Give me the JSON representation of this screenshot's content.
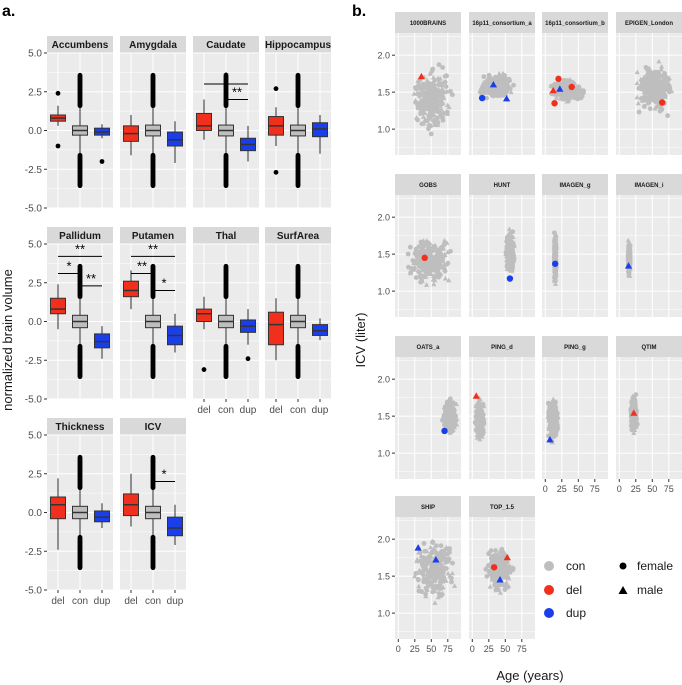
{
  "panel_a_letter": "a.",
  "panel_b_letter": "b.",
  "colors": {
    "del": "#f0301c",
    "con": "#bebebe",
    "dup": "#1a3fe8",
    "panel_bg": "#ebebeb",
    "strip_bg": "#d9d9d9",
    "grid": "#ffffff"
  },
  "chart_data": [
    {
      "type": "box",
      "title": "a.",
      "ylabel": "normalized brain volume",
      "ylim": [
        -5.0,
        5.0
      ],
      "yticks": [
        "5.0",
        "2.5",
        "0.0",
        "-2.5",
        "-5.0"
      ],
      "ytick_values": [
        5.0,
        2.5,
        0.0,
        -2.5,
        -5.0
      ],
      "categories": [
        "del",
        "con",
        "dup"
      ],
      "facets": [
        {
          "name": "Accumbens",
          "boxes": {
            "del": [
              0.3,
              0.6,
              0.8,
              1.0,
              1.6,
              [
                2.4,
                -1.0
              ]
            ],
            "con": [
              -1.5,
              -0.3,
              0.0,
              0.3,
              1.5,
              []
            ],
            "dup": [
              -0.5,
              -0.3,
              -0.1,
              0.15,
              0.4,
              [
                -2.0
              ]
            ]
          },
          "sigs": []
        },
        {
          "name": "Amygdala",
          "boxes": {
            "del": [
              -1.6,
              -0.7,
              -0.2,
              0.3,
              1.0,
              []
            ],
            "con": [
              -1.5,
              -0.35,
              0.0,
              0.35,
              1.5,
              []
            ],
            "dup": [
              -2.1,
              -1.0,
              -0.6,
              -0.1,
              0.6,
              []
            ]
          },
          "sigs": []
        },
        {
          "name": "Caudate",
          "boxes": {
            "del": [
              -0.6,
              0.0,
              0.3,
              1.1,
              2.0,
              []
            ],
            "con": [
              -1.5,
              -0.35,
              0.0,
              0.35,
              1.5,
              []
            ],
            "dup": [
              -2.0,
              -1.3,
              -0.9,
              -0.5,
              0.3,
              []
            ]
          },
          "sigs": [
            {
              "from": "del",
              "to": "dup",
              "level": 3.0,
              "label": "*"
            },
            {
              "from": "con",
              "to": "dup",
              "level": 2.0,
              "label": "**"
            }
          ]
        },
        {
          "name": "Hippocampus",
          "boxes": {
            "del": [
              -1.0,
              -0.3,
              0.3,
              0.9,
              1.5,
              [
                2.7,
                -2.7
              ]
            ],
            "con": [
              -1.5,
              -0.35,
              0.0,
              0.35,
              1.5,
              []
            ],
            "dup": [
              -1.5,
              -0.4,
              0.1,
              0.5,
              1.0,
              []
            ]
          },
          "sigs": []
        },
        {
          "name": "Pallidum",
          "boxes": {
            "del": [
              -0.5,
              0.5,
              0.8,
              1.5,
              2.4,
              []
            ],
            "con": [
              -1.5,
              -0.4,
              0.0,
              0.4,
              1.6,
              []
            ],
            "dup": [
              -2.4,
              -1.7,
              -1.3,
              -0.8,
              -0.3,
              []
            ]
          },
          "sigs": [
            {
              "from": "del",
              "to": "dup",
              "level": 4.2,
              "label": "**"
            },
            {
              "from": "del",
              "to": "con",
              "level": 3.1,
              "label": "*"
            },
            {
              "from": "con",
              "to": "dup",
              "level": 2.3,
              "label": "**"
            }
          ]
        },
        {
          "name": "Putamen",
          "boxes": {
            "del": [
              0.8,
              1.6,
              2.0,
              2.6,
              3.3,
              []
            ],
            "con": [
              -1.5,
              -0.4,
              0.0,
              0.4,
              1.5,
              []
            ],
            "dup": [
              -2.0,
              -1.5,
              -0.9,
              -0.3,
              0.5,
              []
            ]
          },
          "sigs": [
            {
              "from": "del",
              "to": "dup",
              "level": 4.2,
              "label": "**"
            },
            {
              "from": "del",
              "to": "con",
              "level": 3.1,
              "label": "**"
            },
            {
              "from": "con",
              "to": "dup",
              "level": 2.0,
              "label": "*"
            }
          ]
        },
        {
          "name": "Thal",
          "boxes": {
            "del": [
              -0.5,
              0.0,
              0.5,
              0.8,
              1.6,
              [
                -3.1
              ]
            ],
            "con": [
              -1.5,
              -0.4,
              0.0,
              0.4,
              1.5,
              []
            ],
            "dup": [
              -1.5,
              -0.7,
              -0.3,
              0.1,
              0.8,
              [
                -2.4
              ]
            ]
          },
          "sigs": []
        },
        {
          "name": "SurfArea",
          "boxes": {
            "del": [
              -2.5,
              -1.5,
              -0.2,
              0.6,
              1.5,
              []
            ],
            "con": [
              -1.5,
              -0.4,
              0.0,
              0.4,
              1.5,
              []
            ],
            "dup": [
              -1.2,
              -0.9,
              -0.6,
              -0.2,
              0.2,
              []
            ]
          },
          "sigs": []
        },
        {
          "name": "Thickness",
          "boxes": {
            "del": [
              -2.4,
              -0.4,
              0.5,
              1.0,
              2.2,
              []
            ],
            "con": [
              -1.5,
              -0.4,
              0.0,
              0.4,
              1.5,
              []
            ],
            "dup": [
              -1.0,
              -0.6,
              -0.3,
              0.1,
              0.6,
              []
            ]
          },
          "sigs": []
        },
        {
          "name": "ICV",
          "boxes": {
            "del": [
              -0.9,
              -0.2,
              0.5,
              1.2,
              2.5,
              []
            ],
            "con": [
              -1.5,
              -0.4,
              0.0,
              0.4,
              1.5,
              []
            ],
            "dup": [
              -2.1,
              -1.5,
              -1.0,
              -0.3,
              0.5,
              []
            ]
          },
          "sigs": [
            {
              "from": "con",
              "to": "dup",
              "level": 2.0,
              "label": "*"
            }
          ]
        }
      ]
    },
    {
      "type": "scatter",
      "title": "b.",
      "xlabel": "Age (years)",
      "ylabel": "ICV (liter)",
      "xlim": [
        -5,
        95
      ],
      "ylim": [
        0.65,
        2.3
      ],
      "xticks": [
        "0",
        "25",
        "50",
        "75"
      ],
      "xtick_values": [
        0,
        25,
        50,
        75
      ],
      "yticks": [
        "2.0",
        "1.5",
        "1.0"
      ],
      "ytick_values": [
        2.0,
        1.5,
        1.0
      ],
      "legend": {
        "groups": [
          "con",
          "del",
          "dup"
        ],
        "sexes": [
          "female",
          "male"
        ]
      },
      "facets": [
        {
          "name": "1000BRAINS",
          "cloud": {
            "x": [
              18,
              85
            ],
            "y": [
              0.8,
              2.0
            ]
          },
          "points": [
            {
              "group": "del",
              "sex": "male",
              "x": 35,
              "y": 1.71
            }
          ]
        },
        {
          "name": "16p11_consortium_a",
          "cloud": {
            "x": [
              5,
              65
            ],
            "y": [
              1.35,
              1.8
            ]
          },
          "points": [
            {
              "group": "dup",
              "sex": "male",
              "x": 32,
              "y": 1.6
            },
            {
              "group": "dup",
              "sex": "female",
              "x": 15,
              "y": 1.42
            },
            {
              "group": "dup",
              "sex": "male",
              "x": 52,
              "y": 1.41
            }
          ]
        },
        {
          "name": "16p11_consortium_b",
          "cloud": {
            "x": [
              5,
              60
            ],
            "y": [
              1.35,
              1.7
            ]
          },
          "points": [
            {
              "group": "del",
              "sex": "female",
              "x": 20,
              "y": 1.68
            },
            {
              "group": "del",
              "sex": "male",
              "x": 12,
              "y": 1.52
            },
            {
              "group": "del",
              "sex": "female",
              "x": 14,
              "y": 1.35
            },
            {
              "group": "del",
              "sex": "female",
              "x": 40,
              "y": 1.57
            },
            {
              "group": "dup",
              "sex": "male",
              "x": 22,
              "y": 1.54
            }
          ]
        },
        {
          "name": "EPIGEN_London",
          "cloud": {
            "x": [
              20,
              85
            ],
            "y": [
              1.1,
              2.0
            ]
          },
          "points": [
            {
              "group": "del",
              "sex": "female",
              "x": 65,
              "y": 1.36
            }
          ]
        },
        {
          "name": "GOBS",
          "cloud": {
            "x": [
              10,
              85
            ],
            "y": [
              1.0,
              1.8
            ]
          },
          "points": [
            {
              "group": "del",
              "sex": "female",
              "x": 40,
              "y": 1.45
            }
          ]
        },
        {
          "name": "HUNT",
          "cloud": {
            "x": [
              50,
              65
            ],
            "y": [
              1.15,
              1.9
            ]
          },
          "points": [
            {
              "group": "dup",
              "sex": "female",
              "x": 57,
              "y": 1.17
            }
          ]
        },
        {
          "name": "IMAGEN_g",
          "cloud": {
            "x": [
              13,
              17
            ],
            "y": [
              1.0,
              1.9
            ]
          },
          "points": [
            {
              "group": "dup",
              "sex": "female",
              "x": 15,
              "y": 1.37
            }
          ]
        },
        {
          "name": "IMAGEN_i",
          "cloud": {
            "x": [
              13,
              17
            ],
            "y": [
              1.15,
              1.75
            ]
          },
          "points": [
            {
              "group": "dup",
              "sex": "male",
              "x": 14,
              "y": 1.34
            }
          ]
        },
        {
          "name": "OATS_a",
          "cloud": {
            "x": [
              65,
              90
            ],
            "y": [
              1.2,
              1.8
            ]
          },
          "points": [
            {
              "group": "dup",
              "sex": "female",
              "x": 70,
              "y": 1.3
            }
          ]
        },
        {
          "name": "PING_d",
          "cloud": {
            "x": [
              3,
              20
            ],
            "y": [
              1.1,
              1.8
            ]
          },
          "points": [
            {
              "group": "del",
              "sex": "male",
              "x": 6,
              "y": 1.77
            }
          ]
        },
        {
          "name": "PING_g",
          "cloud": {
            "x": [
              3,
              21
            ],
            "y": [
              1.1,
              1.8
            ]
          },
          "points": [
            {
              "group": "dup",
              "sex": "male",
              "x": 7,
              "y": 1.18
            }
          ]
        },
        {
          "name": "QTIM",
          "cloud": {
            "x": [
              16,
              28
            ],
            "y": [
              1.2,
              1.85
            ]
          },
          "points": [
            {
              "group": "del",
              "sex": "male",
              "x": 22,
              "y": 1.54
            }
          ]
        },
        {
          "name": "SHIP",
          "cloud": {
            "x": [
              20,
              90
            ],
            "y": [
              1.0,
              2.2
            ]
          },
          "points": [
            {
              "group": "dup",
              "sex": "male",
              "x": 30,
              "y": 1.88
            },
            {
              "group": "dup",
              "sex": "male",
              "x": 57,
              "y": 1.72
            }
          ]
        },
        {
          "name": "TOP_1.5",
          "cloud": {
            "x": [
              18,
              65
            ],
            "y": [
              1.2,
              2.0
            ]
          },
          "points": [
            {
              "group": "del",
              "sex": "female",
              "x": 33,
              "y": 1.62
            },
            {
              "group": "del",
              "sex": "male",
              "x": 53,
              "y": 1.75
            },
            {
              "group": "dup",
              "sex": "male",
              "x": 42,
              "y": 1.45
            }
          ]
        }
      ]
    }
  ]
}
